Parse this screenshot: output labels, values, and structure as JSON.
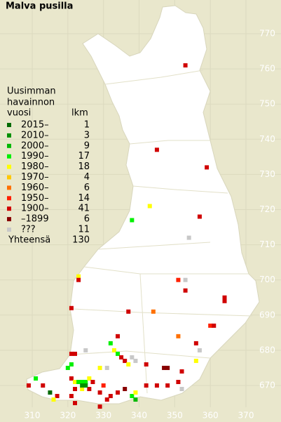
{
  "title": "Malva pusilla",
  "legend": {
    "heading": [
      "Uusimman",
      "havainnon"
    ],
    "col_period": "vuosi",
    "col_count": "lkm",
    "entries": [
      {
        "label": "2015–",
        "count": 1,
        "color": "#006a00"
      },
      {
        "label": "2010–",
        "count": 3,
        "color": "#009000"
      },
      {
        "label": "2000–",
        "count": 9,
        "color": "#00b800"
      },
      {
        "label": "1990–",
        "count": 17,
        "color": "#00f000"
      },
      {
        "label": "1980–",
        "count": 18,
        "color": "#ffff00"
      },
      {
        "label": "1970–",
        "count": 4,
        "color": "#ffc800"
      },
      {
        "label": "1960–",
        "count": 6,
        "color": "#ff7000"
      },
      {
        "label": "1950–",
        "count": 14,
        "color": "#ff2000"
      },
      {
        "label": "1900–",
        "count": 41,
        "color": "#d00000"
      },
      {
        "label": "–1899",
        "count": 6,
        "color": "#880000"
      },
      {
        "label": "???",
        "count": 11,
        "color": "#c8c8c8"
      }
    ],
    "total_label": "Yhteensä",
    "total": 130
  },
  "xticks": [
    310,
    320,
    330,
    340,
    350,
    360,
    370
  ],
  "yticks": [
    670,
    680,
    690,
    700,
    710,
    720,
    730,
    740,
    750,
    760,
    770
  ],
  "points": [
    [
      353,
      761,
      8
    ],
    [
      345,
      737,
      8
    ],
    [
      359,
      732,
      8
    ],
    [
      343,
      721,
      4
    ],
    [
      357,
      718,
      8
    ],
    [
      338,
      717,
      3
    ],
    [
      354,
      712,
      10
    ],
    [
      323,
      701,
      4
    ],
    [
      323,
      700,
      8
    ],
    [
      351,
      700,
      7
    ],
    [
      353,
      700,
      10
    ],
    [
      353,
      697,
      8
    ],
    [
      364,
      695,
      8
    ],
    [
      364,
      694,
      8
    ],
    [
      321,
      692,
      8
    ],
    [
      337,
      691,
      8
    ],
    [
      344,
      691,
      6
    ],
    [
      360,
      687,
      7
    ],
    [
      361,
      687,
      8
    ],
    [
      351,
      684,
      6
    ],
    [
      356,
      682,
      8
    ],
    [
      357,
      680,
      10
    ],
    [
      321,
      679,
      8
    ],
    [
      322,
      679,
      8
    ],
    [
      325,
      680,
      10
    ],
    [
      332,
      682,
      3
    ],
    [
      333,
      680,
      4
    ],
    [
      334,
      684,
      8
    ],
    [
      334,
      679,
      3
    ],
    [
      335,
      678,
      8
    ],
    [
      336,
      677,
      8
    ],
    [
      337,
      676,
      4
    ],
    [
      338,
      678,
      10
    ],
    [
      339,
      677,
      10
    ],
    [
      342,
      676,
      8
    ],
    [
      356,
      677,
      4
    ],
    [
      321,
      676,
      3
    ],
    [
      320,
      675,
      3
    ],
    [
      329,
      675,
      4
    ],
    [
      331,
      675,
      10
    ],
    [
      347,
      675,
      9
    ],
    [
      348,
      675,
      9
    ],
    [
      311,
      672,
      3
    ],
    [
      309,
      670,
      8
    ],
    [
      313,
      670,
      8
    ],
    [
      315,
      668,
      0
    ],
    [
      317,
      667,
      8
    ],
    [
      316,
      666,
      4
    ],
    [
      321,
      672,
      8
    ],
    [
      322,
      671,
      4
    ],
    [
      323,
      671,
      3
    ],
    [
      324,
      671,
      3
    ],
    [
      325,
      671,
      3
    ],
    [
      326,
      672,
      4
    ],
    [
      327,
      671,
      8
    ],
    [
      322,
      669,
      8
    ],
    [
      324,
      669,
      4
    ],
    [
      326,
      669,
      8
    ],
    [
      321,
      667,
      8
    ],
    [
      322,
      665,
      8
    ],
    [
      329,
      668,
      8
    ],
    [
      329,
      664,
      8
    ],
    [
      331,
      666,
      8
    ],
    [
      332,
      667,
      8
    ],
    [
      334,
      668,
      8
    ],
    [
      336,
      669,
      9
    ],
    [
      338,
      667,
      3
    ],
    [
      339,
      668,
      4
    ],
    [
      342,
      670,
      8
    ],
    [
      345,
      670,
      8
    ],
    [
      348,
      670,
      8
    ],
    [
      351,
      671,
      8
    ],
    [
      352,
      669,
      10
    ],
    [
      352,
      674,
      8
    ],
    [
      324,
      670,
      1
    ],
    [
      325,
      670,
      1
    ],
    [
      339,
      666,
      2
    ],
    [
      330,
      670,
      7
    ]
  ]
}
